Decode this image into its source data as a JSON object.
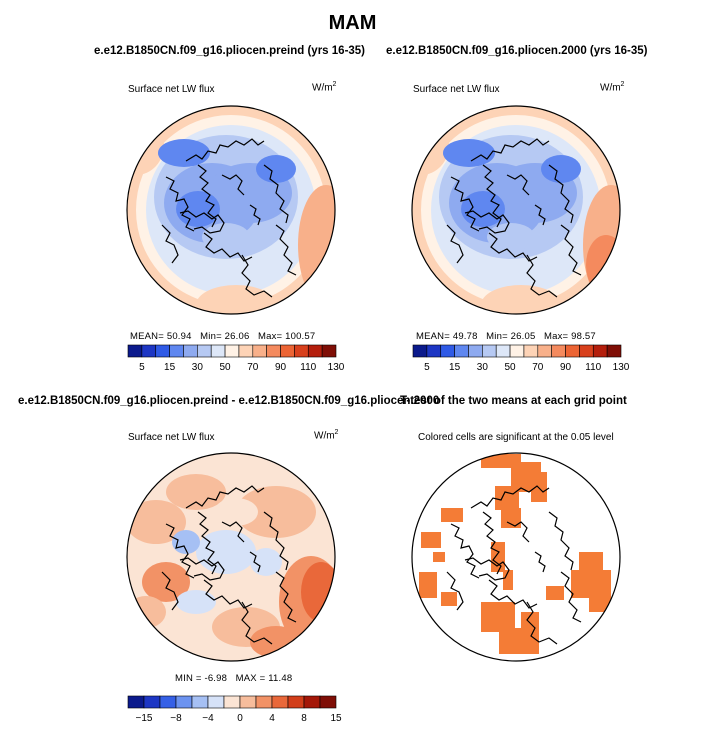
{
  "figure_title": "MAM",
  "panels": {
    "tl": {
      "title": "e.e12.B1850CN.f09_g16.pliocen.preind (yrs 16-35)",
      "left_label": "Surface net LW flux",
      "unit": "W/m",
      "unit_exp": "2",
      "mean_label": "MEAN=",
      "mean": "50.94",
      "min_label": "Min=",
      "min": "26.06",
      "max_label": "Max=",
      "max": "100.57"
    },
    "tr": {
      "title": "e.e12.B1850CN.f09_g16.pliocen.2000 (yrs 16-35)",
      "left_label": "Surface net LW flux",
      "unit": "W/m",
      "unit_exp": "2",
      "mean_label": "MEAN=",
      "mean": "49.78",
      "min_label": "Min=",
      "min": "26.05",
      "max_label": "Max=",
      "max": "98.57"
    },
    "bl": {
      "title": "e.e12.B1850CN.f09_g16.pliocen.preind - e.e12.B1850CN.f09_g16.pliocen.2000",
      "left_label": "Surface net LW flux",
      "unit": "W/m",
      "unit_exp": "2",
      "min_label": "MIN =",
      "min": "-6.98",
      "max_label": "MAX =",
      "max": "11.48"
    },
    "br": {
      "title": "T-test of the two means at each grid point",
      "left_label": "Colored cells are significant at the 0.05 level"
    }
  },
  "chart_data": [
    {
      "type": "heatmap",
      "projection": "north polar stereographic",
      "title": "e.e12.B1850CN.f09_g16.pliocen.preind (yrs 16-35)",
      "variable": "Surface net LW flux",
      "units": "W/m2",
      "stats": {
        "mean": 50.94,
        "min": 26.06,
        "max": 100.57
      },
      "colorbar_ticks": [
        5,
        15,
        30,
        50,
        70,
        90,
        110,
        130
      ],
      "colorbar_ticks_text": [
        "5",
        "15",
        "30",
        "50",
        "70",
        "90",
        "110",
        "130"
      ]
    },
    {
      "type": "heatmap",
      "projection": "north polar stereographic",
      "title": "e.e12.B1850CN.f09_g16.pliocen.2000 (yrs 16-35)",
      "variable": "Surface net LW flux",
      "units": "W/m2",
      "stats": {
        "mean": 49.78,
        "min": 26.05,
        "max": 98.57
      },
      "colorbar_ticks": [
        5,
        15,
        30,
        50,
        70,
        90,
        110,
        130
      ],
      "colorbar_ticks_text": [
        "5",
        "15",
        "30",
        "50",
        "70",
        "90",
        "110",
        "130"
      ]
    },
    {
      "type": "heatmap",
      "projection": "north polar stereographic",
      "title": "e.e12.B1850CN.f09_g16.pliocen.preind - e.e12.B1850CN.f09_g16.pliocen.2000",
      "variable": "Surface net LW flux",
      "units": "W/m2",
      "stats": {
        "min": -6.98,
        "max": 11.48
      },
      "colorbar_ticks": [
        -15,
        -8,
        -4,
        0,
        4,
        8,
        15
      ],
      "colorbar_ticks_text": [
        "−15",
        "−8",
        "−4",
        "0",
        "4",
        "8",
        "15"
      ]
    },
    {
      "type": "heatmap",
      "projection": "north polar stereographic",
      "title": "T-test of the two means at each grid point",
      "note": "Colored cells are significant at the 0.05 level",
      "significance_level": 0.05
    }
  ],
  "colors": {
    "abs_scale": [
      "#0b1a8c",
      "#1d36c4",
      "#2f5ae6",
      "#5f87f0",
      "#8eaaf0",
      "#b6c9f3",
      "#dde7f8",
      "#fff2e6",
      "#fdd3b6",
      "#f8b08a",
      "#f48a5e",
      "#ec6434",
      "#d8401c",
      "#b41e0c",
      "#7f0e06"
    ],
    "diff_scale": [
      "#0b1a8c",
      "#1d36c4",
      "#3560e6",
      "#6c93f0",
      "#a6c0f4",
      "#d6e2f8",
      "#fbe4d4",
      "#f7bd9c",
      "#f29266",
      "#e9683a",
      "#d23e1a",
      "#a41708",
      "#7f0e06"
    ],
    "significant": "#f47c36",
    "coastline": "#000000"
  }
}
